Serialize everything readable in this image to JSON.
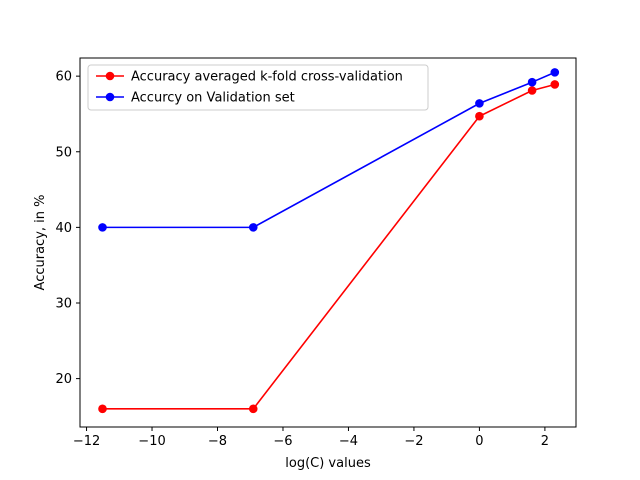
{
  "chart_data": {
    "type": "line",
    "title": "",
    "xlabel": "log(C) values",
    "ylabel": "Accuracy, in %",
    "xlim": [
      -12.2,
      2.95
    ],
    "ylim": [
      13.6,
      62.4
    ],
    "xticks": [
      -12,
      -10,
      -8,
      -6,
      -4,
      -2,
      0,
      2
    ],
    "yticks": [
      20,
      30,
      40,
      50,
      60
    ],
    "grid": false,
    "legend_position": "top-left",
    "series": [
      {
        "name": "Accuracy averaged k-fold cross-validation",
        "color": "#ff0000",
        "marker": "circle",
        "x": [
          -11.5129,
          -6.9078,
          0,
          1.6094,
          2.3026
        ],
        "y": [
          16.0,
          16.0,
          54.7,
          58.1,
          58.9
        ]
      },
      {
        "name": "Accurcy on Validation set",
        "color": "#0000ff",
        "marker": "circle",
        "x": [
          -11.5129,
          -6.9078,
          0,
          1.6094,
          2.3026
        ],
        "y": [
          40.0,
          40.0,
          56.4,
          59.2,
          60.5
        ]
      }
    ]
  }
}
